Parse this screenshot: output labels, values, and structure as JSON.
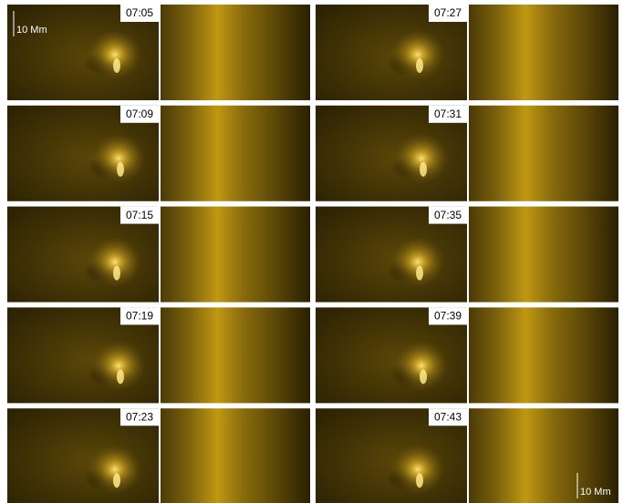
{
  "panels": [
    {
      "time": "07:05"
    },
    {
      "time": "07:27"
    },
    {
      "time": "07:09"
    },
    {
      "time": "07:31"
    },
    {
      "time": "07:15"
    },
    {
      "time": "07:35"
    },
    {
      "time": "07:19"
    },
    {
      "time": "07:39"
    },
    {
      "time": "07:23"
    },
    {
      "time": "07:43"
    }
  ],
  "scale_bars": [
    "10 Mm",
    "10 Mm"
  ]
}
